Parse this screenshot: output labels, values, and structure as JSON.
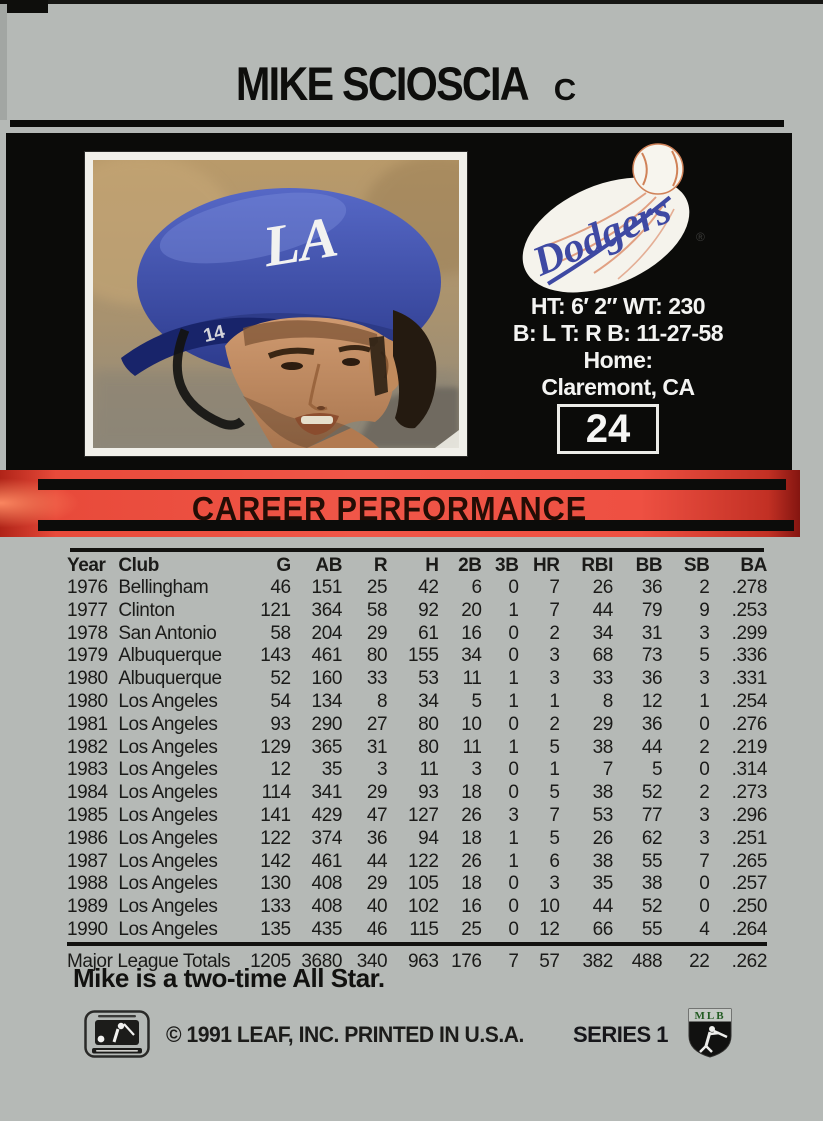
{
  "player": {
    "name": "MIKE SCIOSCIA",
    "position": "C"
  },
  "team": {
    "script": "Dodgers",
    "registered": "®"
  },
  "photo": {
    "helmet_logo": "LA",
    "helmet_number": "14"
  },
  "bio": {
    "height_weight": "HT: 6′ 2″   WT: 230",
    "bats_throws_born": "B: L  T: R  B: 11-27-58",
    "home_label": "Home:",
    "home_value": "Claremont, CA"
  },
  "card_number": "24",
  "section_title": "CAREER PERFORMANCE",
  "stats": {
    "columns": [
      "Year",
      "Club",
      "G",
      "AB",
      "R",
      "H",
      "2B",
      "3B",
      "HR",
      "RBI",
      "BB",
      "SB",
      "BA"
    ],
    "rows": [
      [
        "1976",
        "Bellingham",
        "46",
        "151",
        "25",
        "42",
        "6",
        "0",
        "7",
        "26",
        "36",
        "2",
        ".278"
      ],
      [
        "1977",
        "Clinton",
        "121",
        "364",
        "58",
        "92",
        "20",
        "1",
        "7",
        "44",
        "79",
        "9",
        ".253"
      ],
      [
        "1978",
        "San Antonio",
        "58",
        "204",
        "29",
        "61",
        "16",
        "0",
        "2",
        "34",
        "31",
        "3",
        ".299"
      ],
      [
        "1979",
        "Albuquerque",
        "143",
        "461",
        "80",
        "155",
        "34",
        "0",
        "3",
        "68",
        "73",
        "5",
        ".336"
      ],
      [
        "1980",
        "Albuquerque",
        "52",
        "160",
        "33",
        "53",
        "11",
        "1",
        "3",
        "33",
        "36",
        "3",
        ".331"
      ],
      [
        "1980",
        "Los Angeles",
        "54",
        "134",
        "8",
        "34",
        "5",
        "1",
        "1",
        "8",
        "12",
        "1",
        ".254"
      ],
      [
        "1981",
        "Los Angeles",
        "93",
        "290",
        "27",
        "80",
        "10",
        "0",
        "2",
        "29",
        "36",
        "0",
        ".276"
      ],
      [
        "1982",
        "Los Angeles",
        "129",
        "365",
        "31",
        "80",
        "11",
        "1",
        "5",
        "38",
        "44",
        "2",
        ".219"
      ],
      [
        "1983",
        "Los Angeles",
        "12",
        "35",
        "3",
        "11",
        "3",
        "0",
        "1",
        "7",
        "5",
        "0",
        ".314"
      ],
      [
        "1984",
        "Los Angeles",
        "114",
        "341",
        "29",
        "93",
        "18",
        "0",
        "5",
        "38",
        "52",
        "2",
        ".273"
      ],
      [
        "1985",
        "Los Angeles",
        "141",
        "429",
        "47",
        "127",
        "26",
        "3",
        "7",
        "53",
        "77",
        "3",
        ".296"
      ],
      [
        "1986",
        "Los Angeles",
        "122",
        "374",
        "36",
        "94",
        "18",
        "1",
        "5",
        "26",
        "62",
        "3",
        ".251"
      ],
      [
        "1987",
        "Los Angeles",
        "142",
        "461",
        "44",
        "122",
        "26",
        "1",
        "6",
        "38",
        "55",
        "7",
        ".265"
      ],
      [
        "1988",
        "Los Angeles",
        "130",
        "408",
        "29",
        "105",
        "18",
        "0",
        "3",
        "35",
        "38",
        "0",
        ".257"
      ],
      [
        "1989",
        "Los Angeles",
        "133",
        "408",
        "40",
        "102",
        "16",
        "0",
        "10",
        "44",
        "52",
        "0",
        ".250"
      ],
      [
        "1990",
        "Los Angeles",
        "135",
        "435",
        "46",
        "115",
        "25",
        "0",
        "12",
        "66",
        "55",
        "4",
        ".264"
      ]
    ],
    "totals": [
      "Major League Totals",
      "1205",
      "3680",
      "340",
      "963",
      "176",
      "7",
      "57",
      "382",
      "488",
      "22",
      ".262"
    ]
  },
  "note": "Mike is a two-time All Star.",
  "footer": {
    "copyright": "© 1991 LEAF, INC. PRINTED IN U.S.A.",
    "series": "SERIES 1",
    "mlb_shield_label": "MLB"
  },
  "colors": {
    "card_gray": "#b5b9b6",
    "panel_black": "#0b0b09",
    "banner_red": "#ee5042",
    "dodger_blue": "#3e49a3",
    "helmet_blue": "#3a4cae"
  }
}
